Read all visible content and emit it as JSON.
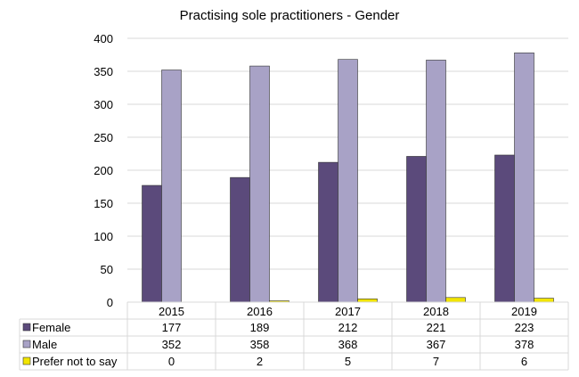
{
  "chart_data": {
    "type": "bar",
    "title": "Practising  sole practitioners - Gender",
    "categories": [
      "2015",
      "2016",
      "2017",
      "2018",
      "2019"
    ],
    "series": [
      {
        "name": "Female",
        "color": "#5B4A7B",
        "values": [
          177,
          189,
          212,
          221,
          223
        ],
        "labels": [
          "177",
          "189",
          "212",
          "221",
          "223"
        ]
      },
      {
        "name": "Male",
        "color": "#A8A2C6",
        "values": [
          352,
          358,
          368,
          367,
          378
        ],
        "labels": [
          "352",
          "358",
          "368",
          "367",
          "378"
        ]
      },
      {
        "name": "Prefer not to say",
        "color": "#F2E500",
        "values": [
          0,
          2,
          5,
          7,
          6
        ],
        "labels": [
          "0",
          "2",
          "5",
          "7",
          "6"
        ]
      }
    ],
    "ylim": [
      0,
      400
    ],
    "yticks": [
      "0",
      "50",
      "100",
      "150",
      "200",
      "250",
      "300",
      "350",
      "400"
    ],
    "grid": true,
    "legend": "data-table"
  }
}
